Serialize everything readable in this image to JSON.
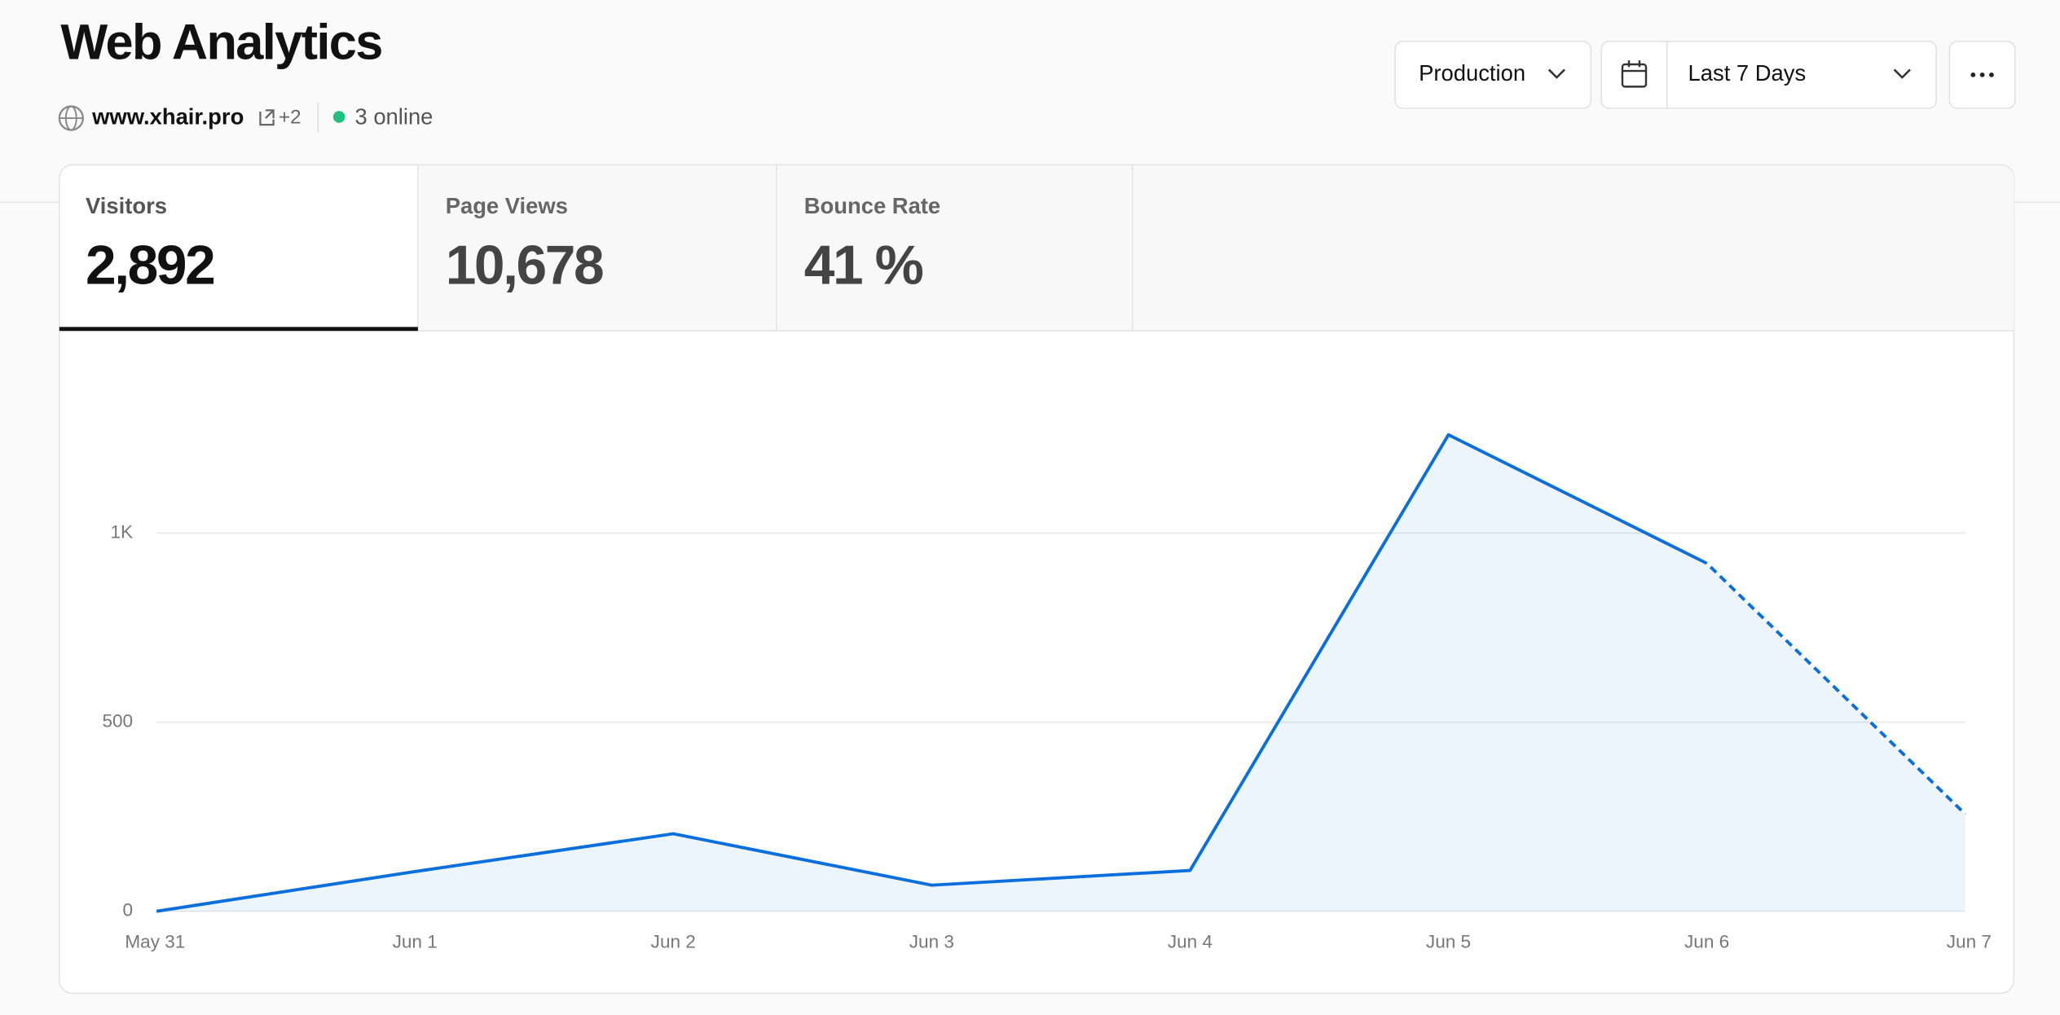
{
  "header": {
    "title": "Web Analytics",
    "site": "www.xhair.pro",
    "extra_sites": "+2",
    "online": "3 online"
  },
  "controls": {
    "environment": "Production",
    "range": "Last 7 Days"
  },
  "metrics": [
    {
      "label": "Visitors",
      "value": "2,892"
    },
    {
      "label": "Page Views",
      "value": "10,678"
    },
    {
      "label": "Bounce Rate",
      "value": "41 %"
    }
  ],
  "chart_data": {
    "type": "area",
    "categories": [
      "May 31",
      "Jun 1",
      "Jun 2",
      "Jun 3",
      "Jun 4",
      "Jun 5",
      "Jun 6",
      "Jun 7"
    ],
    "values": [
      0,
      105,
      205,
      69,
      108,
      1260,
      920,
      257
    ],
    "color": "#0a6fdc",
    "ylim": [
      0,
      1500
    ],
    "yticks": [
      0,
      500,
      {
        "value": 1000,
        "label": "1K"
      }
    ],
    "grid": true
  }
}
